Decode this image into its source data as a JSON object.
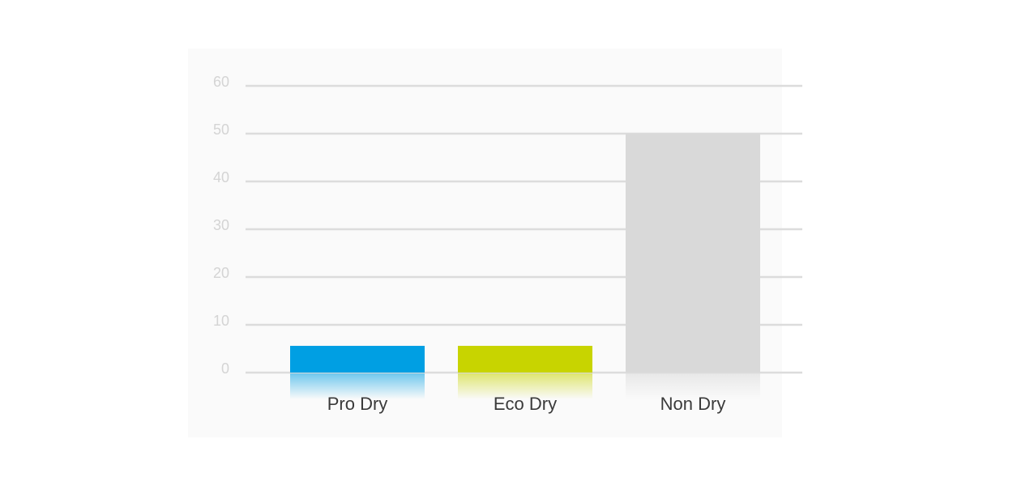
{
  "chart_data": {
    "type": "bar",
    "categories": [
      "Pro Dry",
      "Eco Dry",
      "Non Dry"
    ],
    "values": [
      5.6,
      5.6,
      50
    ],
    "colors": [
      "#009fe3",
      "#c8d400",
      "#d9d9d9"
    ],
    "ylim": [
      0,
      60
    ],
    "yticks": [
      0,
      10,
      20,
      30,
      40,
      50,
      60
    ],
    "grid": true
  }
}
